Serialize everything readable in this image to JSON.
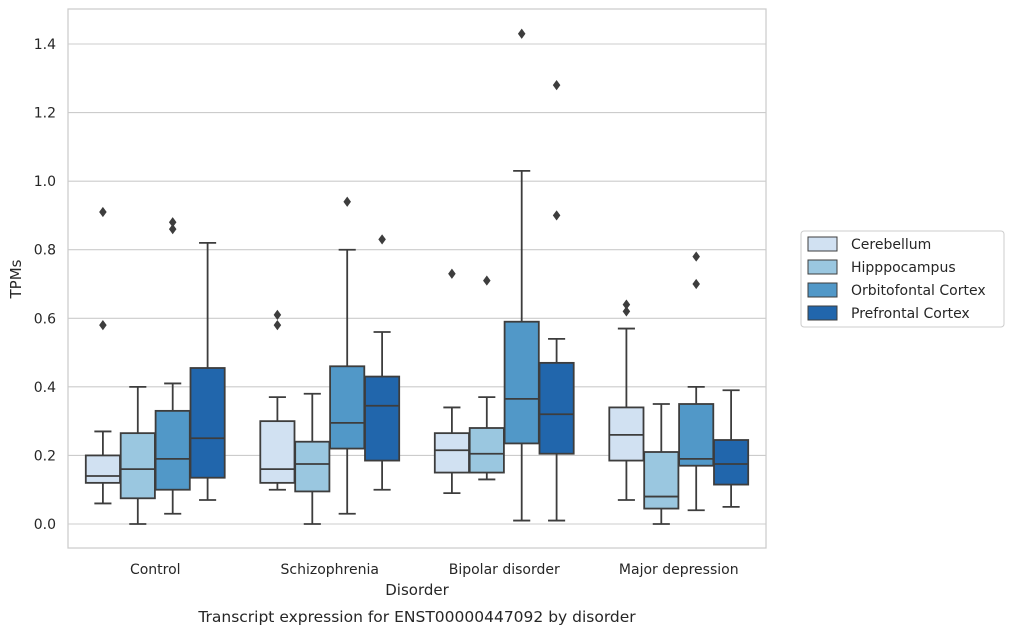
{
  "chart_data": {
    "type": "box",
    "xlabel": "Disorder",
    "ylabel": "TPMs",
    "caption": "Transcript expression for ENST00000447092 by disorder",
    "ylim": [
      -0.07,
      1.5
    ],
    "yticks": [
      0.0,
      0.2,
      0.4,
      0.6,
      0.8,
      1.0,
      1.2,
      1.4
    ],
    "ytick_labels": [
      "0.0",
      "0.2",
      "0.4",
      "0.6",
      "0.8",
      "1.0",
      "1.2",
      "1.4"
    ],
    "grid": "horizontal",
    "legend_position": "right",
    "categories": [
      "Control",
      "Schizophrenia",
      "Bipolar disorder",
      "Major depression"
    ],
    "series": [
      {
        "name": "Cerebellum",
        "color": "#d1e1f2",
        "boxes": [
          {
            "whisker_low": 0.06,
            "q1": 0.12,
            "median": 0.14,
            "q3": 0.2,
            "whisker_high": 0.27,
            "outliers": [
              0.58,
              0.91
            ]
          },
          {
            "whisker_low": 0.1,
            "q1": 0.12,
            "median": 0.16,
            "q3": 0.3,
            "whisker_high": 0.37,
            "outliers": [
              0.58,
              0.61
            ]
          },
          {
            "whisker_low": 0.09,
            "q1": 0.15,
            "median": 0.215,
            "q3": 0.265,
            "whisker_high": 0.34,
            "outliers": [
              0.73
            ]
          },
          {
            "whisker_low": 0.07,
            "q1": 0.185,
            "median": 0.26,
            "q3": 0.34,
            "whisker_high": 0.57,
            "outliers": [
              0.62,
              0.64
            ]
          }
        ]
      },
      {
        "name": "Hipppocampus",
        "color": "#9ac7e0",
        "boxes": [
          {
            "whisker_low": 0.0,
            "q1": 0.075,
            "median": 0.16,
            "q3": 0.265,
            "whisker_high": 0.4,
            "outliers": []
          },
          {
            "whisker_low": 0.0,
            "q1": 0.095,
            "median": 0.175,
            "q3": 0.24,
            "whisker_high": 0.38,
            "outliers": []
          },
          {
            "whisker_low": 0.13,
            "q1": 0.15,
            "median": 0.205,
            "q3": 0.28,
            "whisker_high": 0.37,
            "outliers": [
              0.71
            ]
          },
          {
            "whisker_low": 0.0,
            "q1": 0.045,
            "median": 0.08,
            "q3": 0.21,
            "whisker_high": 0.35,
            "outliers": []
          }
        ]
      },
      {
        "name": "Orbitofontal Cortex",
        "color": "#5198c8",
        "boxes": [
          {
            "whisker_low": 0.03,
            "q1": 0.1,
            "median": 0.19,
            "q3": 0.33,
            "whisker_high": 0.41,
            "outliers": [
              0.86,
              0.88
            ]
          },
          {
            "whisker_low": 0.03,
            "q1": 0.22,
            "median": 0.295,
            "q3": 0.46,
            "whisker_high": 0.8,
            "outliers": [
              0.94
            ]
          },
          {
            "whisker_low": 0.01,
            "q1": 0.235,
            "median": 0.365,
            "q3": 0.59,
            "whisker_high": 1.03,
            "outliers": [
              1.43
            ]
          },
          {
            "whisker_low": 0.04,
            "q1": 0.17,
            "median": 0.19,
            "q3": 0.35,
            "whisker_high": 0.4,
            "outliers": [
              0.7,
              0.78
            ]
          }
        ]
      },
      {
        "name": "Prefrontal Cortex",
        "color": "#2166ac",
        "boxes": [
          {
            "whisker_low": 0.07,
            "q1": 0.135,
            "median": 0.25,
            "q3": 0.455,
            "whisker_high": 0.82,
            "outliers": []
          },
          {
            "whisker_low": 0.1,
            "q1": 0.185,
            "median": 0.345,
            "q3": 0.43,
            "whisker_high": 0.56,
            "outliers": [
              0.83
            ]
          },
          {
            "whisker_low": 0.01,
            "q1": 0.205,
            "median": 0.32,
            "q3": 0.47,
            "whisker_high": 0.54,
            "outliers": [
              0.9,
              1.28
            ]
          },
          {
            "whisker_low": 0.05,
            "q1": 0.115,
            "median": 0.175,
            "q3": 0.245,
            "whisker_high": 0.39,
            "outliers": []
          }
        ]
      }
    ]
  }
}
